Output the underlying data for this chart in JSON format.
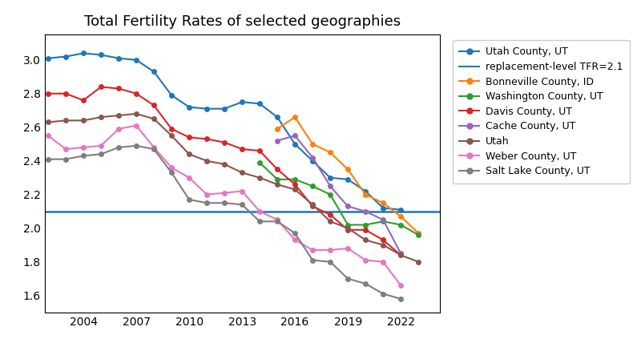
{
  "title": "Total Fertility Rates of selected geographies",
  "replacement_level": 2.1,
  "years": [
    2002,
    2003,
    2004,
    2005,
    2006,
    2007,
    2008,
    2009,
    2010,
    2011,
    2012,
    2013,
    2014,
    2015,
    2016,
    2017,
    2018,
    2019,
    2020,
    2021,
    2022,
    2023
  ],
  "series": {
    "Utah County, UT": {
      "color": "#1f77b4",
      "data": [
        3.01,
        3.02,
        3.04,
        3.03,
        3.01,
        3.0,
        2.93,
        2.79,
        2.72,
        2.71,
        2.71,
        2.75,
        2.74,
        2.66,
        2.5,
        2.4,
        2.3,
        2.29,
        2.22,
        2.12,
        2.11,
        null
      ]
    },
    "Bonneville County, ID": {
      "color": "#ff7f0e",
      "data": [
        null,
        null,
        null,
        null,
        null,
        null,
        null,
        null,
        null,
        null,
        null,
        null,
        null,
        2.59,
        2.66,
        2.5,
        2.45,
        2.35,
        2.2,
        2.15,
        2.07,
        1.97
      ]
    },
    "Washington County, UT": {
      "color": "#2ca02c",
      "data": [
        null,
        null,
        null,
        null,
        null,
        null,
        null,
        null,
        null,
        null,
        null,
        null,
        2.39,
        2.29,
        2.29,
        2.25,
        2.2,
        2.02,
        2.02,
        2.04,
        2.02,
        1.96
      ]
    },
    "Davis County, UT": {
      "color": "#d62728",
      "data": [
        2.8,
        2.8,
        2.76,
        2.84,
        2.83,
        2.8,
        2.73,
        2.59,
        2.54,
        2.53,
        2.51,
        2.47,
        2.46,
        2.35,
        2.26,
        2.13,
        2.08,
        1.99,
        1.99,
        1.93,
        1.84,
        null
      ]
    },
    "Cache County, UT": {
      "color": "#9467bd",
      "data": [
        null,
        null,
        null,
        null,
        null,
        null,
        null,
        null,
        null,
        null,
        null,
        null,
        null,
        2.52,
        2.55,
        2.42,
        2.25,
        2.13,
        2.1,
        2.05,
        1.85,
        null
      ]
    },
    "Utah": {
      "color": "#8c564b",
      "data": [
        2.63,
        2.64,
        2.64,
        2.66,
        2.67,
        2.68,
        2.65,
        2.55,
        2.44,
        2.4,
        2.38,
        2.33,
        2.3,
        2.26,
        2.23,
        2.14,
        2.04,
        2.0,
        1.93,
        1.9,
        1.84,
        1.8
      ]
    },
    "Weber County, UT": {
      "color": "#e377c2",
      "data": [
        2.55,
        2.47,
        2.48,
        2.49,
        2.59,
        2.61,
        2.48,
        2.36,
        2.3,
        2.2,
        2.21,
        2.22,
        2.1,
        2.05,
        1.93,
        1.87,
        1.87,
        1.88,
        1.81,
        1.8,
        1.66,
        null
      ]
    },
    "Salt Lake County, UT": {
      "color": "#7f7f7f",
      "data": [
        2.41,
        2.41,
        2.43,
        2.44,
        2.48,
        2.49,
        2.47,
        2.33,
        2.17,
        2.15,
        2.15,
        2.14,
        2.04,
        2.04,
        1.97,
        1.81,
        1.8,
        1.7,
        1.67,
        1.61,
        1.58,
        null
      ]
    }
  },
  "ylim": [
    1.5,
    3.15
  ],
  "xlim": [
    2001.8,
    2024.2
  ],
  "yticks": [
    1.6,
    1.8,
    2.0,
    2.2,
    2.4,
    2.6,
    2.8,
    3.0
  ],
  "xticks": [
    2004,
    2007,
    2010,
    2013,
    2016,
    2019,
    2022
  ],
  "figsize": [
    7.95,
    4.33
  ],
  "dpi": 100,
  "title_fontsize": 13,
  "legend_fontsize": 9,
  "marker_size": 4,
  "linewidth": 1.5
}
